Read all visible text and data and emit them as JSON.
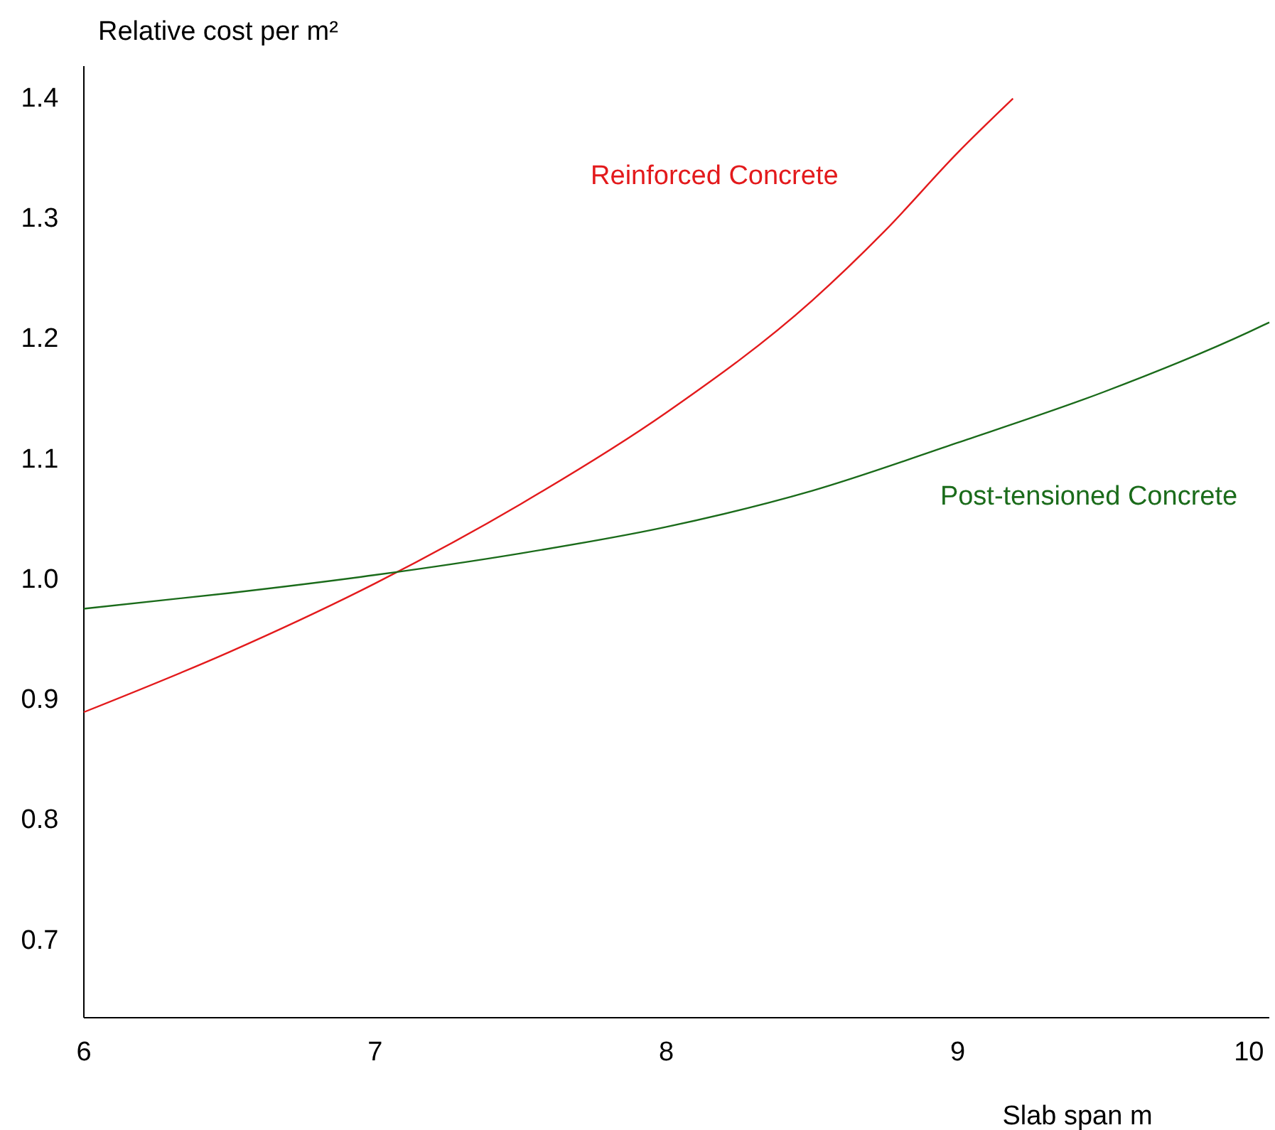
{
  "chart_data": {
    "type": "line",
    "xlabel": "Slab span m",
    "ylabel": "Relative cost per m²",
    "xlim": [
      6,
      10.07
    ],
    "xticks": [
      6,
      7,
      8,
      9,
      10
    ],
    "ylim": [
      0.636,
      1.427
    ],
    "yticks": [
      0.7,
      0.8,
      0.9,
      {
        "value": 1,
        "label": "1.0"
      },
      1.1,
      1.2,
      1.3,
      1.4
    ],
    "grid": false,
    "marker": "none",
    "line_style": "solid",
    "series": [
      {
        "name": "Reinforced Concrete",
        "color": "#e31a1c",
        "x": [
          6,
          6.5,
          7,
          7.5,
          8,
          8.5,
          8.75,
          9,
          9.19
        ],
        "values": [
          0.89,
          0.94,
          0.997,
          1.063,
          1.139,
          1.232,
          1.29,
          1.355,
          1.4
        ]
      },
      {
        "name": "Post-tensioned Concrete",
        "color": "#1a6b1a",
        "x": [
          6,
          6.5,
          7,
          7.5,
          8,
          8.5,
          9,
          9.5,
          10,
          10.07
        ],
        "values": [
          0.976,
          0.989,
          1.004,
          1.022,
          1.044,
          1.074,
          1.114,
          1.156,
          1.206,
          1.214
        ]
      }
    ]
  }
}
